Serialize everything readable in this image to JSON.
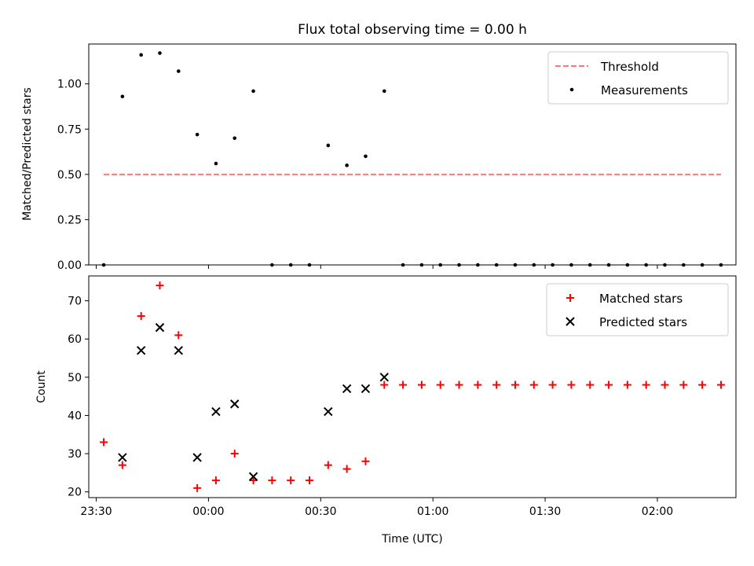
{
  "title": "Flux total observing time = 0.00 h",
  "chart_data": [
    {
      "type": "scatter",
      "panel": "top",
      "ylabel": "Matched/Predicted stars",
      "ylim": [
        0,
        1.22
      ],
      "yticks": [
        0.0,
        0.25,
        0.5,
        0.75,
        1.0
      ],
      "ytick_labels": [
        "0.00",
        "0.25",
        "0.50",
        "0.75",
        "1.00"
      ],
      "legend_position": "top-right",
      "threshold": {
        "name": "Threshold",
        "value": 0.5,
        "x_start": "23:32",
        "x_end": "02:17",
        "color": "#ff7777"
      },
      "series": [
        {
          "name": "Measurements",
          "color": "#000000",
          "x": [
            "23:32",
            "23:37",
            "23:42",
            "23:47",
            "23:52",
            "23:57",
            "00:02",
            "00:07",
            "00:12",
            "00:17",
            "00:22",
            "00:27",
            "00:32",
            "00:37",
            "00:42",
            "00:47",
            "00:52",
            "00:57",
            "01:02",
            "01:07",
            "01:12",
            "01:17",
            "01:22",
            "01:27",
            "01:32",
            "01:37",
            "01:42",
            "01:47",
            "01:52",
            "01:57",
            "02:02",
            "02:07",
            "02:12",
            "02:17"
          ],
          "y": [
            0,
            0.93,
            1.16,
            1.17,
            1.07,
            0.72,
            0.56,
            0.7,
            0.96,
            0,
            0,
            0,
            0.66,
            0.55,
            0.6,
            0.96,
            0,
            0,
            0,
            0,
            0,
            0,
            0,
            0,
            0,
            0,
            0,
            0,
            0,
            0,
            0,
            0,
            0,
            0
          ]
        }
      ]
    },
    {
      "type": "scatter",
      "panel": "bottom",
      "xlabel": "Time (UTC)",
      "ylabel": "Count",
      "ylim": [
        18.5,
        76.5
      ],
      "yticks": [
        20,
        30,
        40,
        50,
        60,
        70
      ],
      "ytick_labels": [
        "20",
        "30",
        "40",
        "50",
        "60",
        "70"
      ],
      "xlim": [
        "23:28",
        "02:21"
      ],
      "xticks": [
        "23:30",
        "00:00",
        "00:30",
        "01:00",
        "01:30",
        "02:00"
      ],
      "legend_position": "top-right",
      "series": [
        {
          "name": "Matched stars",
          "marker": "plus",
          "color": "#ff0000",
          "x": [
            "23:32",
            "23:37",
            "23:42",
            "23:47",
            "23:52",
            "23:57",
            "00:02",
            "00:07",
            "00:12",
            "00:17",
            "00:22",
            "00:27",
            "00:32",
            "00:37",
            "00:42",
            "00:47",
            "00:52",
            "00:57",
            "01:02",
            "01:07",
            "01:12",
            "01:17",
            "01:22",
            "01:27",
            "01:32",
            "01:37",
            "01:42",
            "01:47",
            "01:52",
            "01:57",
            "02:02",
            "02:07",
            "02:12",
            "02:17"
          ],
          "y": [
            33,
            27,
            66,
            74,
            61,
            21,
            23,
            30,
            23,
            23,
            23,
            23,
            27,
            26,
            28,
            48,
            48,
            48,
            48,
            48,
            48,
            48,
            48,
            48,
            48,
            48,
            48,
            48,
            48,
            48,
            48,
            48,
            48,
            48
          ]
        },
        {
          "name": "Predicted stars",
          "marker": "x",
          "color": "#000000",
          "x": [
            "23:37",
            "23:42",
            "23:47",
            "23:52",
            "23:57",
            "00:02",
            "00:07",
            "00:12",
            "00:32",
            "00:37",
            "00:42",
            "00:47"
          ],
          "y": [
            29,
            57,
            63,
            57,
            29,
            41,
            43,
            24,
            41,
            47,
            47,
            50
          ]
        }
      ]
    }
  ]
}
